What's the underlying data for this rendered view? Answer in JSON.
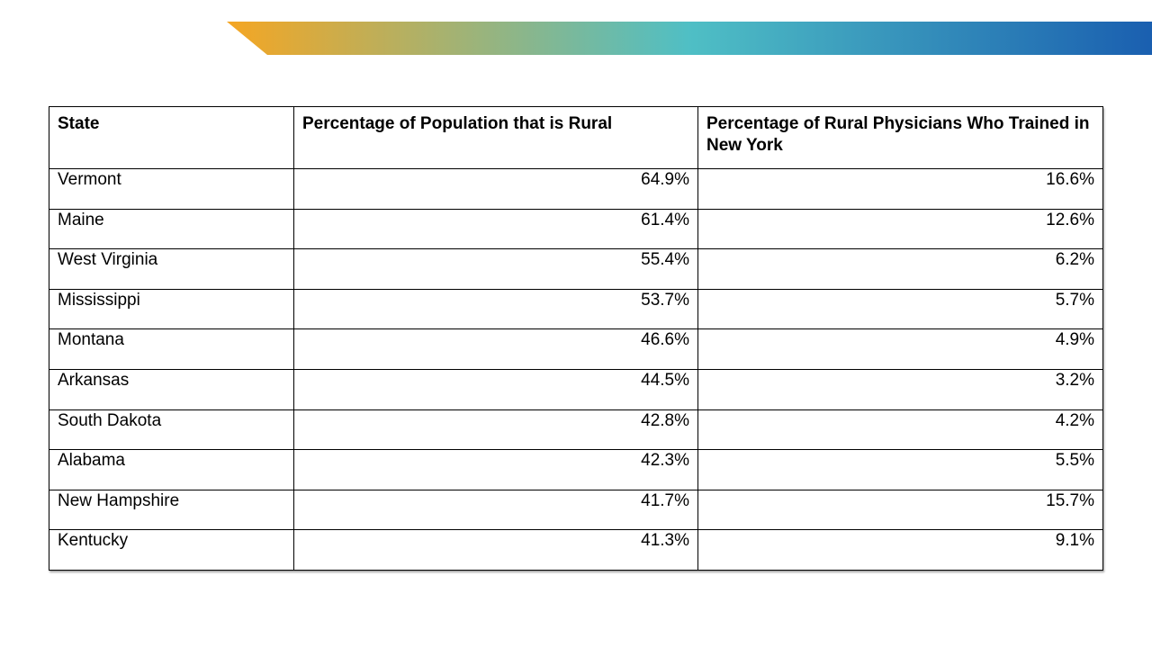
{
  "banner": {
    "gradient_colors": [
      "#F5A623",
      "#4FBFC5",
      "#1A5FB0"
    ]
  },
  "table": {
    "headers": [
      "State",
      "Percentage of Population that is Rural",
      "Percentage of Rural Physicians Who Trained in New York"
    ],
    "rows": [
      {
        "state": "Vermont",
        "rural_population": "64.9%",
        "rural_physicians_ny": "16.6%"
      },
      {
        "state": "Maine",
        "rural_population": "61.4%",
        "rural_physicians_ny": "12.6%"
      },
      {
        "state": "West Virginia",
        "rural_population": "55.4%",
        "rural_physicians_ny": "6.2%"
      },
      {
        "state": "Mississippi",
        "rural_population": "53.7%",
        "rural_physicians_ny": "5.7%"
      },
      {
        "state": "Montana",
        "rural_population": "46.6%",
        "rural_physicians_ny": "4.9%"
      },
      {
        "state": "Arkansas",
        "rural_population": "44.5%",
        "rural_physicians_ny": "3.2%"
      },
      {
        "state": "South Dakota",
        "rural_population": "42.8%",
        "rural_physicians_ny": "4.2%"
      },
      {
        "state": "Alabama",
        "rural_population": "42.3%",
        "rural_physicians_ny": "5.5%"
      },
      {
        "state": "New Hampshire",
        "rural_population": "41.7%",
        "rural_physicians_ny": "15.7%"
      },
      {
        "state": "Kentucky",
        "rural_population": "41.3%",
        "rural_physicians_ny": "9.1%"
      }
    ]
  }
}
